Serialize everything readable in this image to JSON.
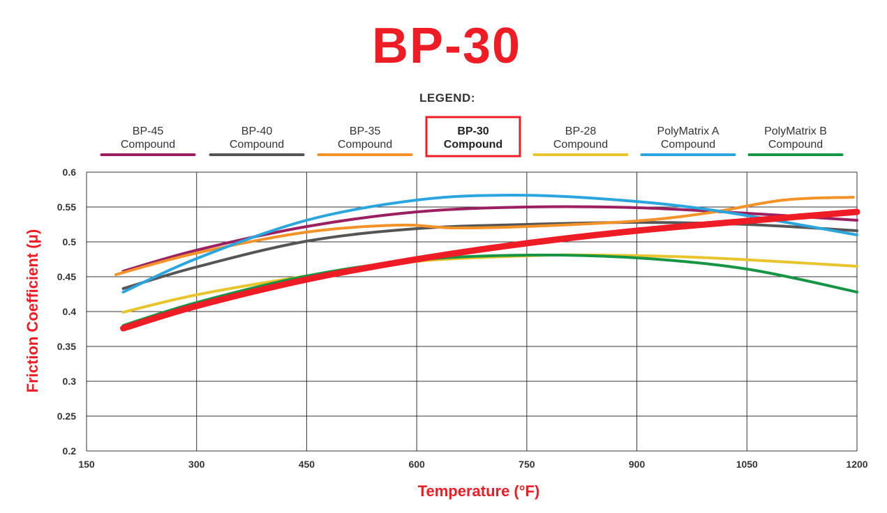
{
  "chart_data": {
    "type": "line",
    "title": "BP-30",
    "legend_heading": "LEGEND:",
    "legend_placement": "top",
    "xlabel": "Temperature (°F)",
    "ylabel": "Friction Coefficient (μ)",
    "xlim": [
      150,
      1200
    ],
    "ylim": [
      0.2,
      0.6
    ],
    "grid": true,
    "x_ticks": [
      "150",
      "300",
      "450",
      "600",
      "750",
      "900",
      "1050",
      "1200"
    ],
    "y_ticks": [
      "0.2",
      "0.25",
      "0.3",
      "0.35",
      "0.4",
      "0.45",
      "0.5",
      "0.55",
      "0.6"
    ],
    "series": [
      {
        "name": "BP-45 Compound",
        "label_lines": [
          "BP-45",
          "Compound"
        ],
        "color": "#9b1f61",
        "highlight": false,
        "points": [
          [
            200,
            0.458
          ],
          [
            300,
            0.488
          ],
          [
            450,
            0.522
          ],
          [
            600,
            0.543
          ],
          [
            750,
            0.55
          ],
          [
            900,
            0.549
          ],
          [
            1050,
            0.541
          ],
          [
            1200,
            0.531
          ]
        ]
      },
      {
        "name": "BP-40 Compound",
        "label_lines": [
          "BP-40",
          "Compound"
        ],
        "color": "#555555",
        "highlight": false,
        "points": [
          [
            200,
            0.433
          ],
          [
            300,
            0.464
          ],
          [
            450,
            0.501
          ],
          [
            600,
            0.519
          ],
          [
            750,
            0.525
          ],
          [
            900,
            0.528
          ],
          [
            1050,
            0.525
          ],
          [
            1200,
            0.516
          ]
        ]
      },
      {
        "name": "BP-35 Compound",
        "label_lines": [
          "BP-35",
          "Compound"
        ],
        "color": "#f39228",
        "highlight": false,
        "points": [
          [
            190,
            0.453
          ],
          [
            300,
            0.484
          ],
          [
            450,
            0.514
          ],
          [
            575,
            0.524
          ],
          [
            650,
            0.52
          ],
          [
            750,
            0.522
          ],
          [
            900,
            0.53
          ],
          [
            1000,
            0.542
          ],
          [
            1100,
            0.56
          ],
          [
            1195,
            0.564
          ]
        ]
      },
      {
        "name": "BP-30 Compound",
        "label_lines": [
          "BP-30",
          "Compound"
        ],
        "color": "#ee1c24",
        "highlight": true,
        "points": [
          [
            200,
            0.376
          ],
          [
            300,
            0.408
          ],
          [
            450,
            0.446
          ],
          [
            600,
            0.475
          ],
          [
            750,
            0.498
          ],
          [
            900,
            0.516
          ],
          [
            1050,
            0.53
          ],
          [
            1200,
            0.543
          ]
        ]
      },
      {
        "name": "BP-28 Compound",
        "label_lines": [
          "BP-28",
          "Compound"
        ],
        "color": "#e8c52c",
        "highlight": false,
        "points": [
          [
            200,
            0.399
          ],
          [
            300,
            0.424
          ],
          [
            450,
            0.451
          ],
          [
            600,
            0.472
          ],
          [
            750,
            0.48
          ],
          [
            850,
            0.481
          ],
          [
            1000,
            0.477
          ],
          [
            1200,
            0.465
          ]
        ]
      },
      {
        "name": "PolyMatrix A Compound",
        "label_lines": [
          "PolyMatrix A",
          "Compound"
        ],
        "color": "#2aa5dd",
        "highlight": false,
        "points": [
          [
            200,
            0.428
          ],
          [
            300,
            0.476
          ],
          [
            450,
            0.531
          ],
          [
            600,
            0.56
          ],
          [
            725,
            0.567
          ],
          [
            850,
            0.562
          ],
          [
            1000,
            0.546
          ],
          [
            1200,
            0.51
          ]
        ]
      },
      {
        "name": "PolyMatrix B Compound",
        "label_lines": [
          "PolyMatrix B",
          "Compound"
        ],
        "color": "#169645",
        "highlight": false,
        "points": [
          [
            200,
            0.38
          ],
          [
            300,
            0.413
          ],
          [
            450,
            0.451
          ],
          [
            600,
            0.474
          ],
          [
            750,
            0.481
          ],
          [
            900,
            0.477
          ],
          [
            1050,
            0.461
          ],
          [
            1200,
            0.428
          ]
        ]
      }
    ]
  }
}
